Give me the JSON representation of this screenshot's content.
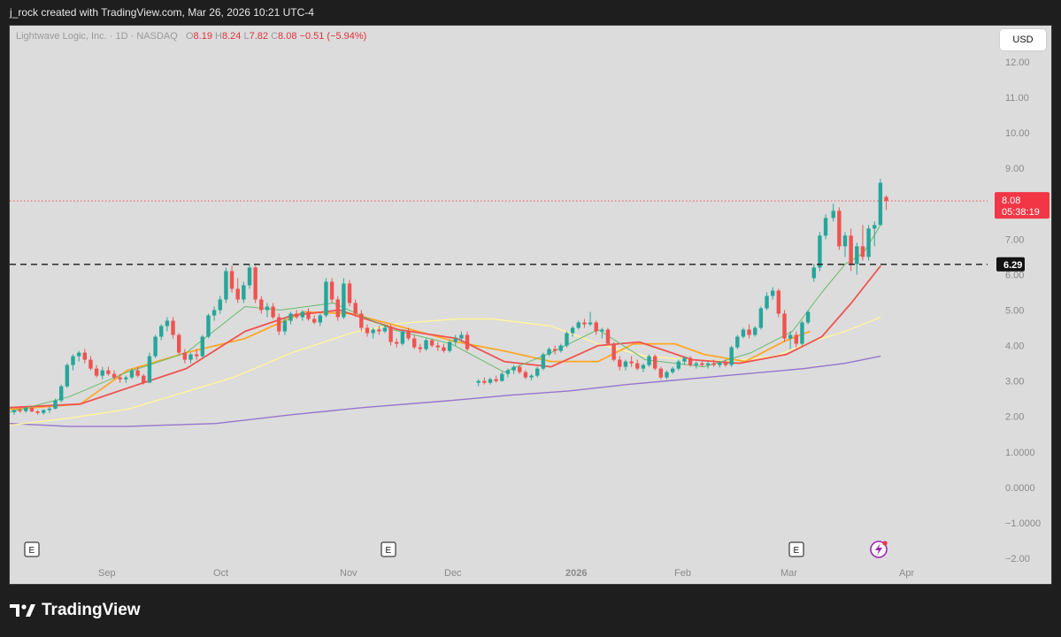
{
  "header": {
    "attribution": "j_rock created with TradingView.com, Mar 26, 2026 10:21 UTC-4"
  },
  "legend": {
    "symbol": "Lightwave Logic, Inc. · 1D · NASDAQ",
    "o_label": "O",
    "o": "8.19",
    "h_label": "H",
    "h": "8.24",
    "l_label": "L",
    "l": "7.82",
    "c_label": "C",
    "c": "8.08",
    "change": "−0.51 (−5.94%)"
  },
  "currency_button": "USD",
  "brand": {
    "name": "TradingView"
  },
  "colors": {
    "up": "#26a69a",
    "down": "#ef5350",
    "price_label": "#f23645",
    "ma_green": "#66bb6a",
    "ma_red": "#ef5350",
    "ma_orange": "#ffa726",
    "ma_yellow": "#fff59d",
    "ma_purple": "#9575cd",
    "background": "#dcdcdc"
  },
  "chart_data": {
    "type": "candlestick",
    "symbol": "Lightwave Logic, Inc.",
    "interval": "1D",
    "exchange": "NASDAQ",
    "ylim": [
      -2,
      12.6
    ],
    "y_ticks": [
      "12.00",
      "11.00",
      "10.00",
      "9.00",
      "7.00",
      "6.00",
      "5.00",
      "4.00",
      "3.00",
      "2.00",
      "1.0000",
      "0.0000",
      "−1.0000",
      "−2.00"
    ],
    "x_ticks": [
      "Sep",
      "Oct",
      "Nov",
      "Dec",
      "2026",
      "Feb",
      "Mar",
      "Apr"
    ],
    "last_price": {
      "value": "8.08",
      "countdown": "05:38:19"
    },
    "horizontal_line": {
      "value": "6.29"
    },
    "earnings_markers": [
      "E",
      "E",
      "E"
    ],
    "candles": [
      [
        2.12,
        2.2,
        2.05,
        2.18
      ],
      [
        2.18,
        2.25,
        2.1,
        2.15
      ],
      [
        2.15,
        2.26,
        2.1,
        2.24
      ],
      [
        2.24,
        2.3,
        2.12,
        2.14
      ],
      [
        2.14,
        2.18,
        2.05,
        2.1
      ],
      [
        2.1,
        2.2,
        2.05,
        2.18
      ],
      [
        2.18,
        2.28,
        2.1,
        2.22
      ],
      [
        2.22,
        2.5,
        2.2,
        2.45
      ],
      [
        2.45,
        2.9,
        2.4,
        2.85
      ],
      [
        2.85,
        3.5,
        2.8,
        3.45
      ],
      [
        3.45,
        3.75,
        3.3,
        3.7
      ],
      [
        3.7,
        3.85,
        3.55,
        3.8
      ],
      [
        3.8,
        3.9,
        3.5,
        3.6
      ],
      [
        3.6,
        3.7,
        3.3,
        3.35
      ],
      [
        3.35,
        3.45,
        3.1,
        3.15
      ],
      [
        3.15,
        3.4,
        3.05,
        3.3
      ],
      [
        3.3,
        3.4,
        3.15,
        3.2
      ],
      [
        3.2,
        3.3,
        3.05,
        3.1
      ],
      [
        3.1,
        3.2,
        2.95,
        3.05
      ],
      [
        3.05,
        3.15,
        2.95,
        3.1
      ],
      [
        3.1,
        3.35,
        3.05,
        3.3
      ],
      [
        3.3,
        3.4,
        3.1,
        3.15
      ],
      [
        3.15,
        3.2,
        2.9,
        2.95
      ],
      [
        2.95,
        3.8,
        2.95,
        3.7
      ],
      [
        3.7,
        4.3,
        3.65,
        4.25
      ],
      [
        4.25,
        4.6,
        4.15,
        4.55
      ],
      [
        4.55,
        4.8,
        4.4,
        4.7
      ],
      [
        4.7,
        4.8,
        4.2,
        4.3
      ],
      [
        4.3,
        4.35,
        3.75,
        3.8
      ],
      [
        3.8,
        3.9,
        3.5,
        3.6
      ],
      [
        3.6,
        3.8,
        3.5,
        3.75
      ],
      [
        3.75,
        3.9,
        3.6,
        3.7
      ],
      [
        3.7,
        4.3,
        3.65,
        4.25
      ],
      [
        4.25,
        4.9,
        4.2,
        4.85
      ],
      [
        4.85,
        5.1,
        4.7,
        5.0
      ],
      [
        5.0,
        5.4,
        4.9,
        5.3
      ],
      [
        5.3,
        6.2,
        5.2,
        6.1
      ],
      [
        6.1,
        6.25,
        5.5,
        5.6
      ],
      [
        5.6,
        5.9,
        5.2,
        5.3
      ],
      [
        5.3,
        5.8,
        5.2,
        5.7
      ],
      [
        5.7,
        6.29,
        5.6,
        6.2
      ],
      [
        6.2,
        6.25,
        5.2,
        5.3
      ],
      [
        5.3,
        5.4,
        4.9,
        5.0
      ],
      [
        5.0,
        5.2,
        4.8,
        5.1
      ],
      [
        5.1,
        5.2,
        4.75,
        4.8
      ],
      [
        4.8,
        4.9,
        4.3,
        4.4
      ],
      [
        4.4,
        4.8,
        4.3,
        4.7
      ],
      [
        4.7,
        4.95,
        4.6,
        4.9
      ],
      [
        4.9,
        5.0,
        4.75,
        4.8
      ],
      [
        4.8,
        5.0,
        4.7,
        4.95
      ],
      [
        4.95,
        5.05,
        4.7,
        4.75
      ],
      [
        4.75,
        4.85,
        4.6,
        4.65
      ],
      [
        4.65,
        4.9,
        4.55,
        4.85
      ],
      [
        4.85,
        5.9,
        4.8,
        5.8
      ],
      [
        5.8,
        5.9,
        5.2,
        5.3
      ],
      [
        5.3,
        5.4,
        4.7,
        4.8
      ],
      [
        4.8,
        5.9,
        4.75,
        5.75
      ],
      [
        5.75,
        5.85,
        5.1,
        5.2
      ],
      [
        5.2,
        5.3,
        4.8,
        4.9
      ],
      [
        4.9,
        5.0,
        4.4,
        4.5
      ],
      [
        4.5,
        4.6,
        4.25,
        4.35
      ],
      [
        4.35,
        4.5,
        4.2,
        4.45
      ],
      [
        4.45,
        4.55,
        4.3,
        4.4
      ],
      [
        4.4,
        4.6,
        4.35,
        4.5
      ],
      [
        4.5,
        4.6,
        4.0,
        4.1
      ],
      [
        4.1,
        4.2,
        3.95,
        4.05
      ],
      [
        4.05,
        4.45,
        4.0,
        4.4
      ],
      [
        4.4,
        4.5,
        4.15,
        4.2
      ],
      [
        4.2,
        4.3,
        3.9,
        3.95
      ],
      [
        3.95,
        4.05,
        3.8,
        3.9
      ],
      [
        3.9,
        4.2,
        3.85,
        4.15
      ],
      [
        4.15,
        4.2,
        3.95,
        4.0
      ],
      [
        4.0,
        4.1,
        3.85,
        3.95
      ],
      [
        3.95,
        4.05,
        3.8,
        3.85
      ],
      [
        3.85,
        4.15,
        3.8,
        4.1
      ],
      [
        4.1,
        4.3,
        4.0,
        4.2
      ],
      [
        4.2,
        4.4,
        4.1,
        4.3
      ],
      [
        4.3,
        4.4,
        3.85,
        3.9
      ],
      [
        2.95,
        3.05,
        2.85,
        3.0
      ],
      [
        3.0,
        3.1,
        2.9,
        2.95
      ],
      [
        2.95,
        3.1,
        2.9,
        3.05
      ],
      [
        3.05,
        3.15,
        2.95,
        3.0
      ],
      [
        3.0,
        3.25,
        2.98,
        3.2
      ],
      [
        3.2,
        3.35,
        3.1,
        3.3
      ],
      [
        3.3,
        3.45,
        3.2,
        3.4
      ],
      [
        3.4,
        3.45,
        3.2,
        3.25
      ],
      [
        3.25,
        3.3,
        3.05,
        3.1
      ],
      [
        3.1,
        3.2,
        3.02,
        3.15
      ],
      [
        3.15,
        3.4,
        3.1,
        3.35
      ],
      [
        3.35,
        3.8,
        3.3,
        3.75
      ],
      [
        3.75,
        3.95,
        3.7,
        3.9
      ],
      [
        3.9,
        4.0,
        3.75,
        3.85
      ],
      [
        3.85,
        4.05,
        3.8,
        4.0
      ],
      [
        4.0,
        4.4,
        3.95,
        4.35
      ],
      [
        4.35,
        4.55,
        4.25,
        4.5
      ],
      [
        4.5,
        4.7,
        4.45,
        4.65
      ],
      [
        4.65,
        4.75,
        4.5,
        4.6
      ],
      [
        4.6,
        4.95,
        4.55,
        4.65
      ],
      [
        4.65,
        4.7,
        4.3,
        4.4
      ],
      [
        4.4,
        4.5,
        4.2,
        4.45
      ],
      [
        4.45,
        4.5,
        4.0,
        4.05
      ],
      [
        4.05,
        4.1,
        3.55,
        3.6
      ],
      [
        3.6,
        3.7,
        3.3,
        3.4
      ],
      [
        3.4,
        3.6,
        3.3,
        3.55
      ],
      [
        3.55,
        3.7,
        3.4,
        3.5
      ],
      [
        3.5,
        3.6,
        3.3,
        3.35
      ],
      [
        3.35,
        3.5,
        3.25,
        3.45
      ],
      [
        3.45,
        3.75,
        3.4,
        3.7
      ],
      [
        3.7,
        3.75,
        3.3,
        3.35
      ],
      [
        3.35,
        3.4,
        3.05,
        3.1
      ],
      [
        3.1,
        3.3,
        3.05,
        3.25
      ],
      [
        3.25,
        3.4,
        3.2,
        3.35
      ],
      [
        3.35,
        3.6,
        3.3,
        3.55
      ],
      [
        3.55,
        3.7,
        3.45,
        3.65
      ],
      [
        3.65,
        3.7,
        3.4,
        3.45
      ],
      [
        3.45,
        3.55,
        3.35,
        3.5
      ],
      [
        3.5,
        3.6,
        3.4,
        3.45
      ],
      [
        3.45,
        3.55,
        3.35,
        3.5
      ],
      [
        3.5,
        3.6,
        3.4,
        3.45
      ],
      [
        3.45,
        3.55,
        3.38,
        3.52
      ],
      [
        3.52,
        3.6,
        3.4,
        3.45
      ],
      [
        3.45,
        4.0,
        3.4,
        3.95
      ],
      [
        3.95,
        4.3,
        3.9,
        4.25
      ],
      [
        4.25,
        4.5,
        4.2,
        4.45
      ],
      [
        4.45,
        4.6,
        4.2,
        4.3
      ],
      [
        4.3,
        4.55,
        4.25,
        4.5
      ],
      [
        4.5,
        5.1,
        4.45,
        5.05
      ],
      [
        5.05,
        5.5,
        5.0,
        5.4
      ],
      [
        5.4,
        5.65,
        5.3,
        5.55
      ],
      [
        5.55,
        5.6,
        4.8,
        4.9
      ],
      [
        4.9,
        5.0,
        4.1,
        4.2
      ],
      [
        4.2,
        4.4,
        3.9,
        4.3
      ],
      [
        4.3,
        4.4,
        3.95,
        4.05
      ],
      [
        4.05,
        4.7,
        4.0,
        4.65
      ],
      [
        4.65,
        5.0,
        4.6,
        4.95
      ],
      [
        5.9,
        6.3,
        5.8,
        6.2
      ],
      [
        6.2,
        7.2,
        6.1,
        7.1
      ],
      [
        7.1,
        7.7,
        7.0,
        7.6
      ],
      [
        7.6,
        8.0,
        7.5,
        7.8
      ],
      [
        7.8,
        7.9,
        6.7,
        6.8
      ],
      [
        6.8,
        7.2,
        6.5,
        7.1
      ],
      [
        7.1,
        7.3,
        6.1,
        6.3
      ],
      [
        6.3,
        6.9,
        6.0,
        6.8
      ],
      [
        6.8,
        7.4,
        6.4,
        6.5
      ],
      [
        6.5,
        7.4,
        6.4,
        7.3
      ],
      [
        7.3,
        7.5,
        6.8,
        7.4
      ],
      [
        7.4,
        8.7,
        7.4,
        8.59
      ],
      [
        8.19,
        8.24,
        7.82,
        8.08
      ]
    ],
    "ma_green": [
      [
        0,
        2.12
      ],
      [
        10,
        2.55
      ],
      [
        20,
        3.25
      ],
      [
        30,
        3.8
      ],
      [
        40,
        5.1
      ],
      [
        46,
        5.0
      ],
      [
        55,
        5.2
      ],
      [
        65,
        4.45
      ],
      [
        75,
        4.05
      ],
      [
        84,
        3.25
      ],
      [
        92,
        3.8
      ],
      [
        100,
        4.45
      ],
      [
        108,
        3.6
      ],
      [
        118,
        3.4
      ],
      [
        126,
        3.8
      ],
      [
        133,
        4.4
      ],
      [
        138,
        5.5
      ],
      [
        142,
        6.3
      ],
      [
        145,
        6.6
      ],
      [
        148,
        7.4
      ]
    ],
    "ma_red": [
      [
        0,
        2.25
      ],
      [
        12,
        2.35
      ],
      [
        20,
        2.8
      ],
      [
        30,
        3.35
      ],
      [
        40,
        4.4
      ],
      [
        48,
        4.85
      ],
      [
        56,
        5.0
      ],
      [
        66,
        4.45
      ],
      [
        76,
        4.2
      ],
      [
        84,
        3.55
      ],
      [
        92,
        3.4
      ],
      [
        100,
        4.0
      ],
      [
        107,
        4.1
      ],
      [
        116,
        3.6
      ],
      [
        124,
        3.5
      ],
      [
        132,
        3.75
      ],
      [
        138,
        4.25
      ],
      [
        143,
        5.2
      ],
      [
        148,
        6.25
      ]
    ],
    "ma_orange": [
      [
        0,
        2.2
      ],
      [
        12,
        2.35
      ],
      [
        20,
        3.3
      ],
      [
        30,
        3.8
      ],
      [
        40,
        4.2
      ],
      [
        50,
        4.95
      ],
      [
        58,
        4.9
      ],
      [
        66,
        4.55
      ],
      [
        76,
        4.1
      ],
      [
        84,
        3.85
      ],
      [
        92,
        3.55
      ],
      [
        100,
        3.55
      ],
      [
        106,
        4.05
      ],
      [
        113,
        4.05
      ],
      [
        118,
        3.75
      ],
      [
        125,
        3.55
      ],
      [
        132,
        4.15
      ],
      [
        136,
        4.4
      ]
    ],
    "ma_yellow": [
      [
        0,
        1.75
      ],
      [
        10,
        1.95
      ],
      [
        20,
        2.2
      ],
      [
        28,
        2.6
      ],
      [
        38,
        3.1
      ],
      [
        48,
        3.8
      ],
      [
        58,
        4.35
      ],
      [
        66,
        4.62
      ],
      [
        76,
        4.75
      ],
      [
        82,
        4.75
      ],
      [
        92,
        4.55
      ],
      [
        100,
        4.05
      ],
      [
        108,
        3.7
      ],
      [
        116,
        3.6
      ],
      [
        122,
        3.55
      ],
      [
        130,
        3.7
      ],
      [
        137,
        4.15
      ],
      [
        142,
        4.4
      ],
      [
        148,
        4.8
      ]
    ],
    "ma_purple": [
      [
        0,
        1.8
      ],
      [
        10,
        1.72
      ],
      [
        20,
        1.72
      ],
      [
        35,
        1.8
      ],
      [
        48,
        2.05
      ],
      [
        60,
        2.25
      ],
      [
        75,
        2.45
      ],
      [
        85,
        2.6
      ],
      [
        95,
        2.72
      ],
      [
        105,
        2.9
      ],
      [
        115,
        3.05
      ],
      [
        125,
        3.2
      ],
      [
        135,
        3.35
      ],
      [
        142,
        3.5
      ],
      [
        148,
        3.7
      ]
    ]
  }
}
